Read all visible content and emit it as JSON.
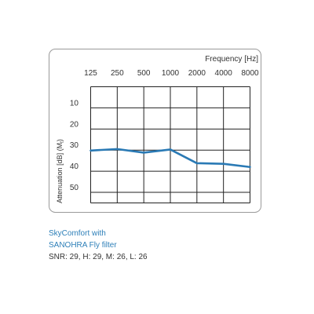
{
  "chart_data": {
    "type": "line",
    "x_title": "Frequency [Hz]",
    "y_title_main": "Attenuation [dB] (M",
    "y_title_sub": "f",
    "y_title_close": ")",
    "categories": [
      "125",
      "250",
      "500",
      "1000",
      "2000",
      "4000",
      "8000"
    ],
    "y_ticks": [
      "10",
      "20",
      "30",
      "40",
      "50"
    ],
    "ylim": [
      0,
      55
    ],
    "y_inverted": true,
    "grid": true,
    "series": [
      {
        "color": "#2a7ab5",
        "values": [
          30.2,
          29.5,
          31.2,
          29.7,
          36.2,
          36.5,
          38.0
        ]
      }
    ]
  },
  "caption": {
    "line1": "SkyComfort with",
    "line2": "SANOHRA Fly filter",
    "ratings": "SNR: 29, H: 29, M: 26, L: 26"
  },
  "colors": {
    "frame": "#9a9a9a",
    "grid": "#222222",
    "line": "#2a7ab5",
    "caption_accent": "#2d7fb8",
    "text": "#333333"
  }
}
